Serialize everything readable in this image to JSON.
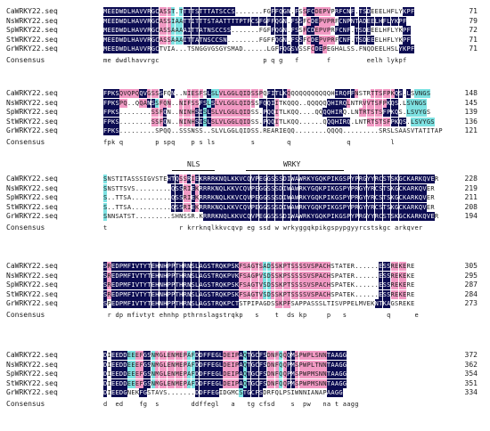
{
  "alignment": {
    "colors": {
      "identical": "#0c0c52",
      "similar_high": "#f29ac4",
      "similar_low": "#7ee2e2",
      "text_dark": "#1a1a1a",
      "text_light": "#ffffff"
    },
    "blocks": [
      {
        "rows": [
          {
            "name": "CaWRKY22.seq",
            "seq": "MEEDWDLHAVVRGCASST.TTTTSTTTATSCCS.......FGFFQGN.FSSFCDEPVPRFCNF.TSDEEELHFLYKPF",
            "end": "71"
          },
          {
            "name": "NsWRKY22.seq",
            "seq": "MEEDWDLHAVVRGCASSIAATTITTTSTAATTTTPTFCSFGFFQGN.FSSFCDEPVPRFCNPNTADEELHFLYKPF",
            "end": "79"
          },
          {
            "name": "SpWRKY22.seq",
            "seq": "MEEDWDLHAVVRGCASSAAAAITTATNSCCSS.......FGFFQGN.FSSFCDEPVPRFCNF.TSDEEELHFLYKPF",
            "end": "72"
          },
          {
            "name": "StWRKY22.seq",
            "seq": "MEEDWDLHAVVRGCASSAAAITTATNSCCSN........FGFFQGN.FSSFCDEPVPRFCNF.TSDEEELHFLYKPF",
            "end": "71"
          },
          {
            "name": "GrWRKY22.seq",
            "seq": "MEEDWDLHAVVRGCTVIA...TSNGGVGSGYSMAD......LGFFQGSVSSFCDEPEGHALSS.FNQDEELHSLYKPF",
            "end": "71"
          }
        ],
        "consensus": "me dwdlhavvrgc                          p q g   f       f         eelh lykpf",
        "codes": [
          "00000000000000111222000000000000000.......0000000.10011113000000000.33333330000000",
          "00000000000000111222000000000000000000000000000000.10011113000000000000000000000000",
          "00000000000000111222000000000000000.......0000000.10011113000000000.33333330000000",
          "00000000000000111222000000000000000........0000000.10011113000000000.3333330000000",
          "00000000000000333...3333333333333333......33000003331001333333333.33333333000000"
        ]
      },
      {
        "rows": [
          {
            "name": "CaWRKY22.seq",
            "seq": "FPKSQVQPQQVGSSSFQN..NIESFSLSLVLGGLQIDSSPQFITLKQQQQQQQQQQQHIRQFFNSTRTTSFPKQS.LSVNGS",
            "end": "148"
          },
          {
            "name": "NsWRKY22.seq",
            "seq": "FPKSPQ..QQANSSFQN..NIFSSFSLSLVLGGLQIDSSFQQIITKQQQ..QQQQQQHIRQLNTRVVTSFPKQS.LSVNGS",
            "end": "145"
          },
          {
            "name": "SpWRKY22.seq",
            "seq": "FPKS........SSFQN..NINHSISLSLVLGGLQIDSS.PQQITLKQQ....QQQQHIRQ.LNTRTSTSFPKQS.LSVYGS",
            "end": "139"
          },
          {
            "name": "StWRKY22.seq",
            "seq": "FPKS........SSFQN..NINHSISLSLVLGGLQIDSS.PQQITLKQQ......QQQHIRQ.LNTRTSTSFPKQS.LSVYGS",
            "end": "136"
          },
          {
            "name": "GrWRKY22.seq",
            "seq": "FPKS.........SPQQ..SSSNSS..SLVLGGLQIDSS.REARIEQQ........QQQQ.........SRSLSAASVTATITAP",
            "end": "121"
          }
        ],
        "consensus": "fpk q        p spq    p s ls         s        q              q          l",
        "codes": [
          "0000111110011103301..11113022111111111113000001333333333330000013331111110000.222222",
          "0000111..11002111..1111100201111111111300001333..33333330000013331111110000.222222",
          "0000........1110..1111100201111111111.330001333....333300000.3331111110000.222222",
          "0000........1110..1111100201111111111.330001333......333000000.3331111110000.222222",
          "0000.........3333..33333..333333333333.3333333........3333.........333333333333333"
        ]
      },
      {
        "rows": [
          {
            "name": "CaWRKY22.seq",
            "seq": "SNSTITASSSIGVSTEHTQSSRIEKRRRKNQLKKVCQVPEGGSSSDIWAWRKYGQKPIKGSPYPRGYYRCSTSKGCKARKQVER",
            "end": "228"
          },
          {
            "name": "NsWRKY22.seq",
            "seq": "SNSTTSVS.........QSSRIEKRRRKNQLKKVCQVPEGGSSSDIWAWRKYGQKPIKGSPYPRGYYRCSTSKGCKARKQVER",
            "end": "219"
          },
          {
            "name": "SpWRKY22.seq",
            "seq": "S..TTSA..........QSSRIEKRRRKNQLKKVCQVPEGGSSSDIWAWRKYGQKPIKGSPYPRGYYRCSTSKGCKARKQVER",
            "end": "211"
          },
          {
            "name": "StWRKY22.seq",
            "seq": "S..TTSA..........QSSRIEKRRRKNQLKKVCQVPEGGSSSDIWAWRKYGQKPIKGSPYPRGYYRCSTSKGCKARKQVER",
            "end": "208"
          },
          {
            "name": "GrWRKY22.seq",
            "seq": "SNNSATST.........SHNSSR.KRRRKNQLKKVCQVPEGGSSSDIWAWRKYGQKPIKGSPYPRGYYRCSTSKGCKARKQVER",
            "end": "194"
          }
        ],
        "consensus": "t                  r krrknqlkkvcqvp eg ssd w wrkyggqkpikgspypgyyrcstskgc arkqver",
        "codes": [
          "23333333333333330001101000000000000000000000000000000000000000000000000000000000000",
          "23333333.........0001101000000000000000000000000000000000000000000000000000000000",
          "2..3333..........0001101000000000000000000000000000000000000000000000000000000000",
          "2..3333..........0001101000000000000000000000000000000000000000000000000000000000",
          "23333333.........3333333.0000000000000000000000000000000000000000000000000000000000"
        ]
      },
      {
        "rows": [
          {
            "name": "CaWRKY22.seq",
            "seq": "SREDPMFIVTYTEHNHPPTHRNSLAGSTRQKPSKFSAGTSADSSKPTSSSSVSPACHSTATER......ESSREKERE",
            "end": "305"
          },
          {
            "name": "NsWRKY22.seq",
            "seq": "SREDPMFIVTYTEHNHPPTHRNSLAGSTRQKPVKFSAGPVSDSSKPSSSSSVSPACHSPATER......ESSREKEKE",
            "end": "295"
          },
          {
            "name": "SpWRKY22.seq",
            "seq": "SREDPMFIVTYTEHNHPPTHRNSLAGSTRQKPSKFSAGTVSDSSKPTSSSSVSPACHSPATEK......ESSREKERE",
            "end": "287"
          },
          {
            "name": "StWRKY22.seq",
            "seq": "SREDPMFIVTYTEHNHPPTHRNSLAGSTRQKPSKFSAGTVSDSSKPTSSSSVSPACHSPATEK......ESSREKERE",
            "end": "284"
          },
          {
            "name": "GrWRKY22.seq",
            "seq": "SPEDPMFIVTYTEHNHPPTHRNSLAGSTRQKPCTSTPIPAGDSSKPFSAPPASSSLTISVPPELMVEKNTKAGSREKE",
            "end": "273"
          }
        ],
        "consensus": " r dp mfivtyt ehnhp pthrnslagstrqkp   s    t  ds kp     p   s          q      e",
        "codes": [
          "01000000000000000000000000000000001111112211111111111111133333......00001111",
          "01000000000000000000000000000000001111112211111111111111133333......00001111",
          "01000000000000000000000000000000001111112211111111111111133333......00001111",
          "01000000000000000000000000000000001111112211111111111111133333......00001111",
          "03000000000000000000000000000000003333333331111333333333333333333333000033333"
        ]
      },
      {
        "rows": [
          {
            "name": "CaWRKY22.seq",
            "seq": "DIEEDDEEEFGSNMGLENMEPAFDDFFEGLDEIPAQTGCFSDNFQQQMSPWPLSNNTAAGG",
            "end": "372"
          },
          {
            "name": "NsWRKY22.seq",
            "seq": "DIEEDDEEEFGSNMGLENMEPAFDDFFEGLDEIPAQTGCFSDNFQQPMSPWPLTNNTAAGG",
            "end": "362"
          },
          {
            "name": "SpWRKY22.seq",
            "seq": "DIEEDDEEEFGSNMGLENMEPAFDDFFEGLDEIPAQTGCFSDNFQQPMSPWPMSNNTAAGG",
            "end": "354"
          },
          {
            "name": "StWRKY22.seq",
            "seq": "DIEEDDEEEFGSNMGLENMEPAFDDFFEGLDEIPAQTGCFSDNFQQPMSPWPMSNNTAAGG",
            "end": "351"
          },
          {
            "name": "GrWRKY22.seq",
            "seq": "DIEEDGNEKFGSTAVS.......DDFFEGIDGMCSTGCFSDRFQLPSIWNNIANAPAAGG",
            "end": "334"
          }
        ],
        "consensus": "d  ed    fg  s        ddffegl   a   tg cfsd    s  pw   na t aagg",
        "codes": [
          "0300002211002111111112200000001111020000011121001111111100000",
          "0300002211002111111112200000001111020000011121001111111100000",
          "0300002211002111111112200000001111020000011121001111111100000",
          "0300002211002111111112200000001111020000011121001111111100000",
          "0300003330033333.......00000033333200000333333333333333300000"
        ]
      }
    ],
    "consensus_label": "Consensus",
    "annotations": [
      {
        "label": "NLS"
      },
      {
        "label": "WRKY"
      }
    ]
  }
}
